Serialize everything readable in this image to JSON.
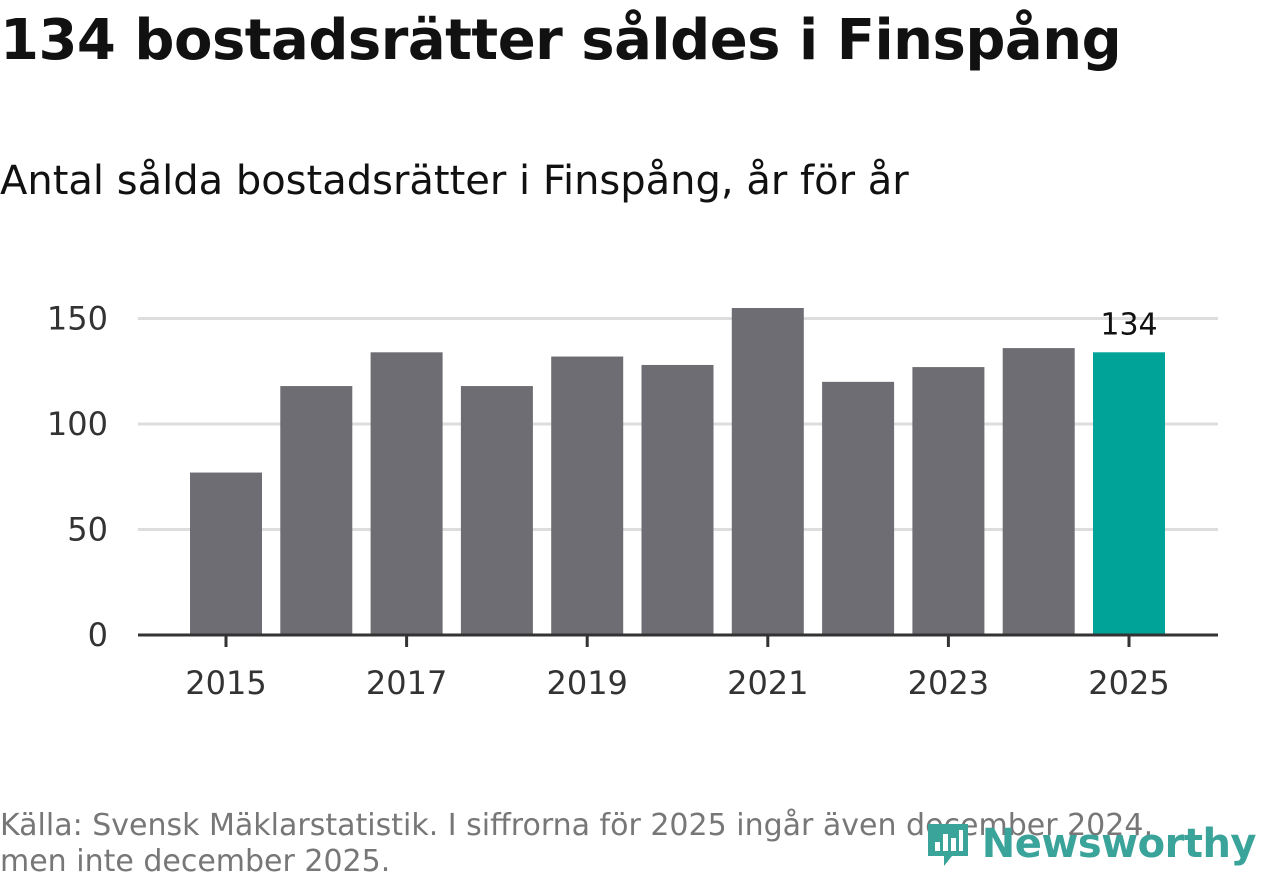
{
  "header": {
    "title": "134 bostadsrätter såldes i Finspång",
    "subtitle": "Antal sålda bostadsrätter i Finspång, år för år"
  },
  "chart_data": {
    "type": "bar",
    "title": "134 bostadsrätter såldes i Finspång",
    "subtitle": "Antal sålda bostadsrätter i Finspång, år för år",
    "categories": [
      "2015",
      "2016",
      "2017",
      "2018",
      "2019",
      "2020",
      "2021",
      "2022",
      "2023",
      "2024",
      "2025"
    ],
    "values": [
      77,
      118,
      134,
      118,
      132,
      128,
      155,
      120,
      127,
      136,
      134
    ],
    "xlabel": "",
    "ylabel": "",
    "ylim": [
      0,
      155
    ],
    "yticks": [
      0,
      50,
      100,
      150
    ],
    "xtick_labels": [
      "2015",
      "2017",
      "2019",
      "2021",
      "2023",
      "2025"
    ],
    "highlight_index": 10,
    "data_labels": [
      {
        "index": 10,
        "text": "134"
      }
    ],
    "colors": {
      "bar": "#6e6d73",
      "highlight": "#00a398",
      "grid": "#dddddd",
      "axis": "#333333"
    },
    "grid": true,
    "legend": "none"
  },
  "footer": {
    "source": "Källa: Svensk Mäklarstatistik. I siffrorna för 2025 ingår även december 2024, men inte december 2025.",
    "brand": "Newsworthy",
    "brand_icon": "newsworthy-logo-icon",
    "brand_color": "#3aa39a"
  }
}
